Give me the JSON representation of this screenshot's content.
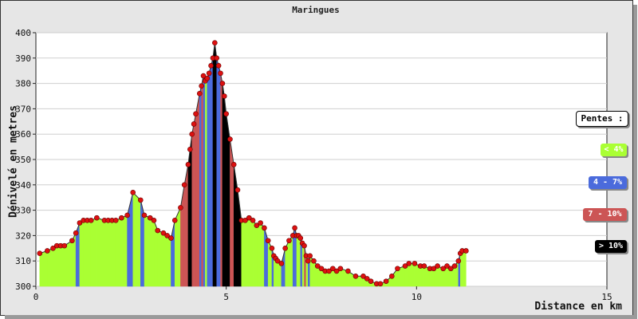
{
  "chart_data": {
    "type": "area",
    "title": "Maringues",
    "xlabel": "Distance en km",
    "ylabel": "Dénivelé en metres",
    "xlim": [
      0,
      15
    ],
    "ylim": [
      300,
      400
    ],
    "x_ticks": [
      "0",
      "5",
      "10",
      "15"
    ],
    "y_ticks": [
      "300",
      "310",
      "320",
      "330",
      "340",
      "350",
      "360",
      "370",
      "380",
      "390",
      "400"
    ],
    "grid": true,
    "legend_position": "right",
    "legend_title": "Pentes :",
    "legend": [
      {
        "label": "< 4%",
        "color": "#aaff33",
        "text_color": "#ffffff"
      },
      {
        "label": "4 - 7%",
        "color": "#4b6bdc",
        "text_color": "#ffffff"
      },
      {
        "label": "7 - 10%",
        "color": "#cc5555",
        "text_color": "#ffffff"
      },
      {
        "label": "> 10%",
        "color": "#000000",
        "text_color": "#ffffff"
      }
    ],
    "x": [
      0.1,
      0.3,
      0.45,
      0.55,
      0.65,
      0.75,
      0.95,
      1.05,
      1.15,
      1.25,
      1.35,
      1.45,
      1.6,
      1.8,
      1.9,
      2.0,
      2.1,
      2.25,
      2.4,
      2.55,
      2.75,
      2.85,
      3.0,
      3.1,
      3.2,
      3.35,
      3.45,
      3.55,
      3.65,
      3.8,
      3.9,
      4.0,
      4.05,
      4.1,
      4.15,
      4.2,
      4.3,
      4.35,
      4.4,
      4.45,
      4.5,
      4.55,
      4.6,
      4.65,
      4.7,
      4.75,
      4.8,
      4.85,
      4.9,
      4.95,
      5.0,
      5.1,
      5.2,
      5.3,
      5.4,
      5.5,
      5.6,
      5.7,
      5.8,
      5.9,
      6.0,
      6.1,
      6.2,
      6.25,
      6.3,
      6.35,
      6.45,
      6.55,
      6.65,
      6.75,
      6.8,
      6.85,
      6.9,
      6.95,
      7.0,
      7.05,
      7.1,
      7.15,
      7.2,
      7.3,
      7.4,
      7.5,
      7.6,
      7.7,
      7.8,
      7.9,
      8.0,
      8.2,
      8.4,
      8.6,
      8.7,
      8.8,
      8.95,
      9.05,
      9.2,
      9.35,
      9.5,
      9.7,
      9.8,
      9.95,
      10.1,
      10.2,
      10.35,
      10.45,
      10.55,
      10.7,
      10.8,
      10.9,
      11.0,
      11.1,
      11.15,
      11.2,
      11.3
    ],
    "y": [
      313,
      314,
      315,
      316,
      316,
      316,
      318,
      321,
      325,
      326,
      326,
      326,
      327,
      326,
      326,
      326,
      326,
      327,
      328,
      337,
      334,
      328,
      327,
      326,
      322,
      321,
      320,
      319,
      326,
      331,
      340,
      348,
      354,
      360,
      364,
      368,
      376,
      379,
      383,
      381,
      382,
      384,
      387,
      390,
      396,
      390,
      387,
      384,
      380,
      375,
      368,
      358,
      348,
      338,
      326,
      326,
      327,
      326,
      324,
      325,
      323,
      318,
      315,
      312,
      311,
      310,
      309,
      315,
      318,
      320,
      323,
      320,
      320,
      319,
      317,
      316,
      312,
      310,
      312,
      310,
      308,
      307,
      306,
      306,
      307,
      306,
      307,
      306,
      304,
      304,
      303,
      302,
      301,
      301,
      302,
      304,
      307,
      308,
      309,
      309,
      308,
      308,
      307,
      307,
      308,
      307,
      308,
      307,
      308,
      310,
      313,
      314,
      314
    ]
  }
}
